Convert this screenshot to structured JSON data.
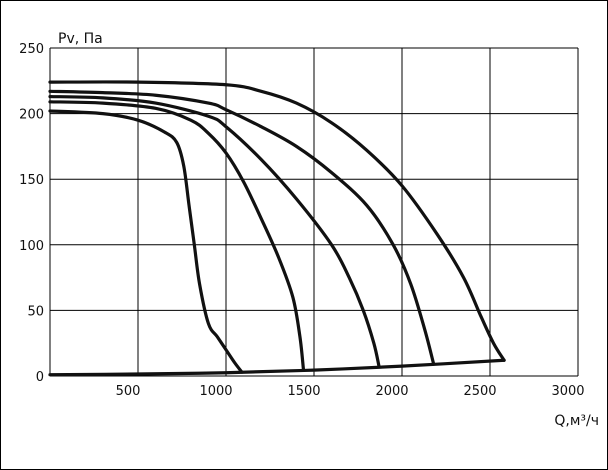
{
  "colors": {
    "background": "#ffffff",
    "border": "#000000",
    "grid": "#000000",
    "curve": "#111111"
  },
  "chart_data": {
    "type": "line",
    "title": "",
    "xlabel": "Q,м³/ч",
    "ylabel": "Pv, Па",
    "xlim": [
      0,
      3000
    ],
    "ylim": [
      0,
      250
    ],
    "x_ticks": [
      500,
      1000,
      1500,
      2000,
      2500,
      3000
    ],
    "y_ticks": [
      0,
      50,
      100,
      150,
      200,
      250
    ],
    "x_tick_labels": [
      "500",
      "1000",
      "1500",
      "2000",
      "2500",
      "3000"
    ],
    "y_tick_labels": [
      "0",
      "50",
      "100",
      "150",
      "200",
      "250"
    ],
    "grid": true,
    "series": [
      {
        "x": [
          0,
          300,
          500,
          650,
          720,
          760,
          790,
          820,
          850,
          900,
          950,
          1000,
          1050,
          1090
        ],
        "y": [
          202,
          200,
          195,
          186,
          178,
          160,
          130,
          100,
          70,
          40,
          30,
          20,
          10,
          3
        ]
      },
      {
        "x": [
          0,
          300,
          600,
          800,
          900,
          1000,
          1100,
          1200,
          1300,
          1380,
          1420,
          1440
        ],
        "y": [
          209,
          208,
          204,
          195,
          185,
          170,
          148,
          120,
          90,
          60,
          30,
          5
        ]
      },
      {
        "x": [
          0,
          300,
          600,
          900,
          1000,
          1200,
          1400,
          1600,
          1700,
          1780,
          1840,
          1870
        ],
        "y": [
          213,
          212,
          208,
          198,
          190,
          165,
          135,
          100,
          75,
          50,
          25,
          7
        ]
      },
      {
        "x": [
          0,
          300,
          600,
          900,
          1000,
          1200,
          1400,
          1600,
          1800,
          1950,
          2050,
          2130,
          2180
        ],
        "y": [
          217,
          216,
          214,
          208,
          203,
          190,
          175,
          155,
          130,
          100,
          70,
          35,
          9
        ]
      },
      {
        "x": [
          0,
          500,
          1000,
          1200,
          1400,
          1600,
          1800,
          2000,
          2200,
          2350,
          2450,
          2520,
          2580
        ],
        "y": [
          224,
          224,
          222,
          217,
          208,
          193,
          172,
          145,
          108,
          75,
          45,
          25,
          12
        ]
      },
      {
        "x": [
          0,
          500,
          1000,
          1500,
          2000,
          2580
        ],
        "y": [
          1,
          1.5,
          2.5,
          4.5,
          7.5,
          12
        ]
      }
    ]
  }
}
